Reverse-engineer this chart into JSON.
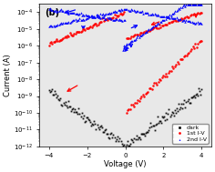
{
  "title": "(b)",
  "xlabel": "Voltage (V)",
  "ylabel": "Current (A)",
  "xlim": [
    -4.5,
    4.5
  ],
  "ylim_log": [
    -12,
    -3.5
  ],
  "bg_color": "#e8e8e8",
  "legend_labels": [
    "dark",
    "1st I-V",
    "2nd I-V"
  ],
  "legend_colors": [
    "black",
    "red",
    "blue"
  ],
  "legend_markers": [
    "s",
    "o",
    "^"
  ],
  "dark_base": 1e-12,
  "dark_exp": 1.9,
  "noise_seed": 42
}
